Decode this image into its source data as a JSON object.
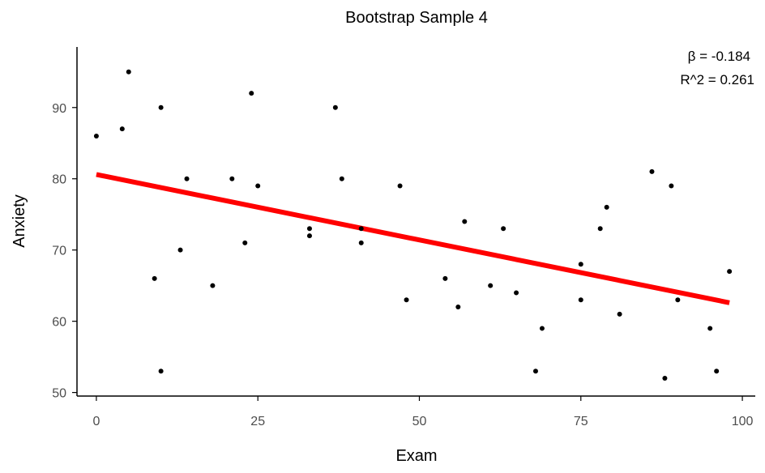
{
  "chart_data": {
    "type": "scatter",
    "title": "Bootstrap Sample 4",
    "xlabel": "Exam",
    "ylabel": "Anxiety",
    "xlim": [
      -3,
      102
    ],
    "ylim": [
      49.5,
      98.5
    ],
    "xticks": [
      0,
      25,
      50,
      75,
      100
    ],
    "yticks": [
      50,
      60,
      70,
      80,
      90
    ],
    "grid": false,
    "annotations": [
      "β = -0.184",
      "R^2 = 0.261"
    ],
    "colors": {
      "points": "#000000",
      "fit_line": "#ff0000"
    },
    "points": [
      {
        "x": 0,
        "y": 86
      },
      {
        "x": 4,
        "y": 87
      },
      {
        "x": 5,
        "y": 95
      },
      {
        "x": 9,
        "y": 66
      },
      {
        "x": 10,
        "y": 90
      },
      {
        "x": 10,
        "y": 53
      },
      {
        "x": 13,
        "y": 70
      },
      {
        "x": 14,
        "y": 80
      },
      {
        "x": 18,
        "y": 65
      },
      {
        "x": 21,
        "y": 80
      },
      {
        "x": 23,
        "y": 71
      },
      {
        "x": 24,
        "y": 92
      },
      {
        "x": 25,
        "y": 79
      },
      {
        "x": 33,
        "y": 73
      },
      {
        "x": 33,
        "y": 72
      },
      {
        "x": 37,
        "y": 90
      },
      {
        "x": 38,
        "y": 80
      },
      {
        "x": 41,
        "y": 73
      },
      {
        "x": 41,
        "y": 71
      },
      {
        "x": 47,
        "y": 79
      },
      {
        "x": 48,
        "y": 63
      },
      {
        "x": 54,
        "y": 66
      },
      {
        "x": 56,
        "y": 62
      },
      {
        "x": 57,
        "y": 74
      },
      {
        "x": 61,
        "y": 65
      },
      {
        "x": 63,
        "y": 73
      },
      {
        "x": 65,
        "y": 64
      },
      {
        "x": 68,
        "y": 53
      },
      {
        "x": 69,
        "y": 59
      },
      {
        "x": 75,
        "y": 68
      },
      {
        "x": 75,
        "y": 63
      },
      {
        "x": 78,
        "y": 73
      },
      {
        "x": 79,
        "y": 76
      },
      {
        "x": 81,
        "y": 61
      },
      {
        "x": 86,
        "y": 81
      },
      {
        "x": 88,
        "y": 52
      },
      {
        "x": 89,
        "y": 79
      },
      {
        "x": 90,
        "y": 63
      },
      {
        "x": 95,
        "y": 59
      },
      {
        "x": 96,
        "y": 53
      },
      {
        "x": 98,
        "y": 67
      }
    ],
    "fit_line": {
      "x": [
        0,
        98
      ],
      "y": [
        80.6,
        62.6
      ]
    }
  }
}
